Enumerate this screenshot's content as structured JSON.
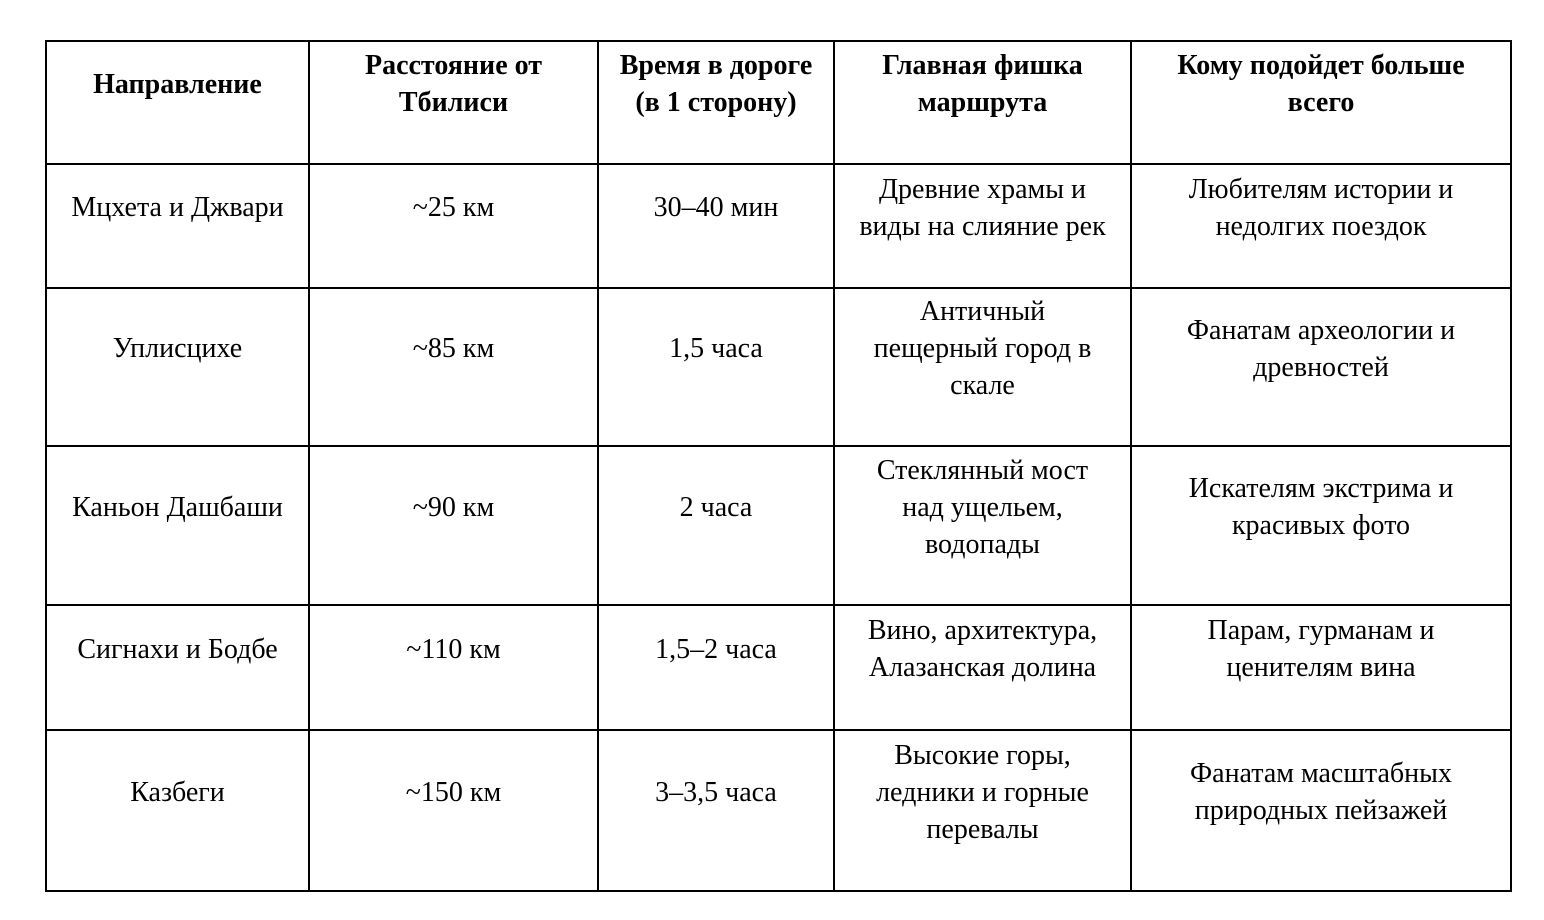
{
  "table": {
    "title_semantic": "Day trips from Tbilisi comparison table",
    "text_color": "#000000",
    "border_color": "#000000",
    "background_color": "#ffffff",
    "headers": [
      "Направление",
      "Расстояние от\nТбилиси",
      "Время в дороге\n(в 1 сторону)",
      "Главная фишка\nмаршрута",
      "Кому подойдет больше\nвсего"
    ],
    "rows": [
      [
        "Мцхета и Джвари",
        "~25 км",
        "30–40 мин",
        "Древние храмы и\nвиды на слияние рек",
        "Любителям истории и\nнедолгих поездок"
      ],
      [
        "Уплисцихе",
        "~85 км",
        "1,5 часа",
        "Античный\nпещерный город в\nскале",
        "Фанатам археологии и\nдревностей"
      ],
      [
        "Каньон Дашбаши",
        "~90 км",
        "2 часа",
        "Стеклянный мост\nнад ущельем,\nводопады",
        "Искателям экстрима и\nкрасивых фото"
      ],
      [
        "Сигнахи и Бодбе",
        "~110 км",
        "1,5–2 часа",
        "Вино, архитектура,\nАлазанская долина",
        "Парам, гурманам и\nценителям вина"
      ],
      [
        "Казбеги",
        "~150 км",
        "3–3,5 часа",
        "Высокие горы,\nледники и горные\nперевалы",
        "Фанатам масштабных\nприродных пейзажей"
      ]
    ]
  }
}
